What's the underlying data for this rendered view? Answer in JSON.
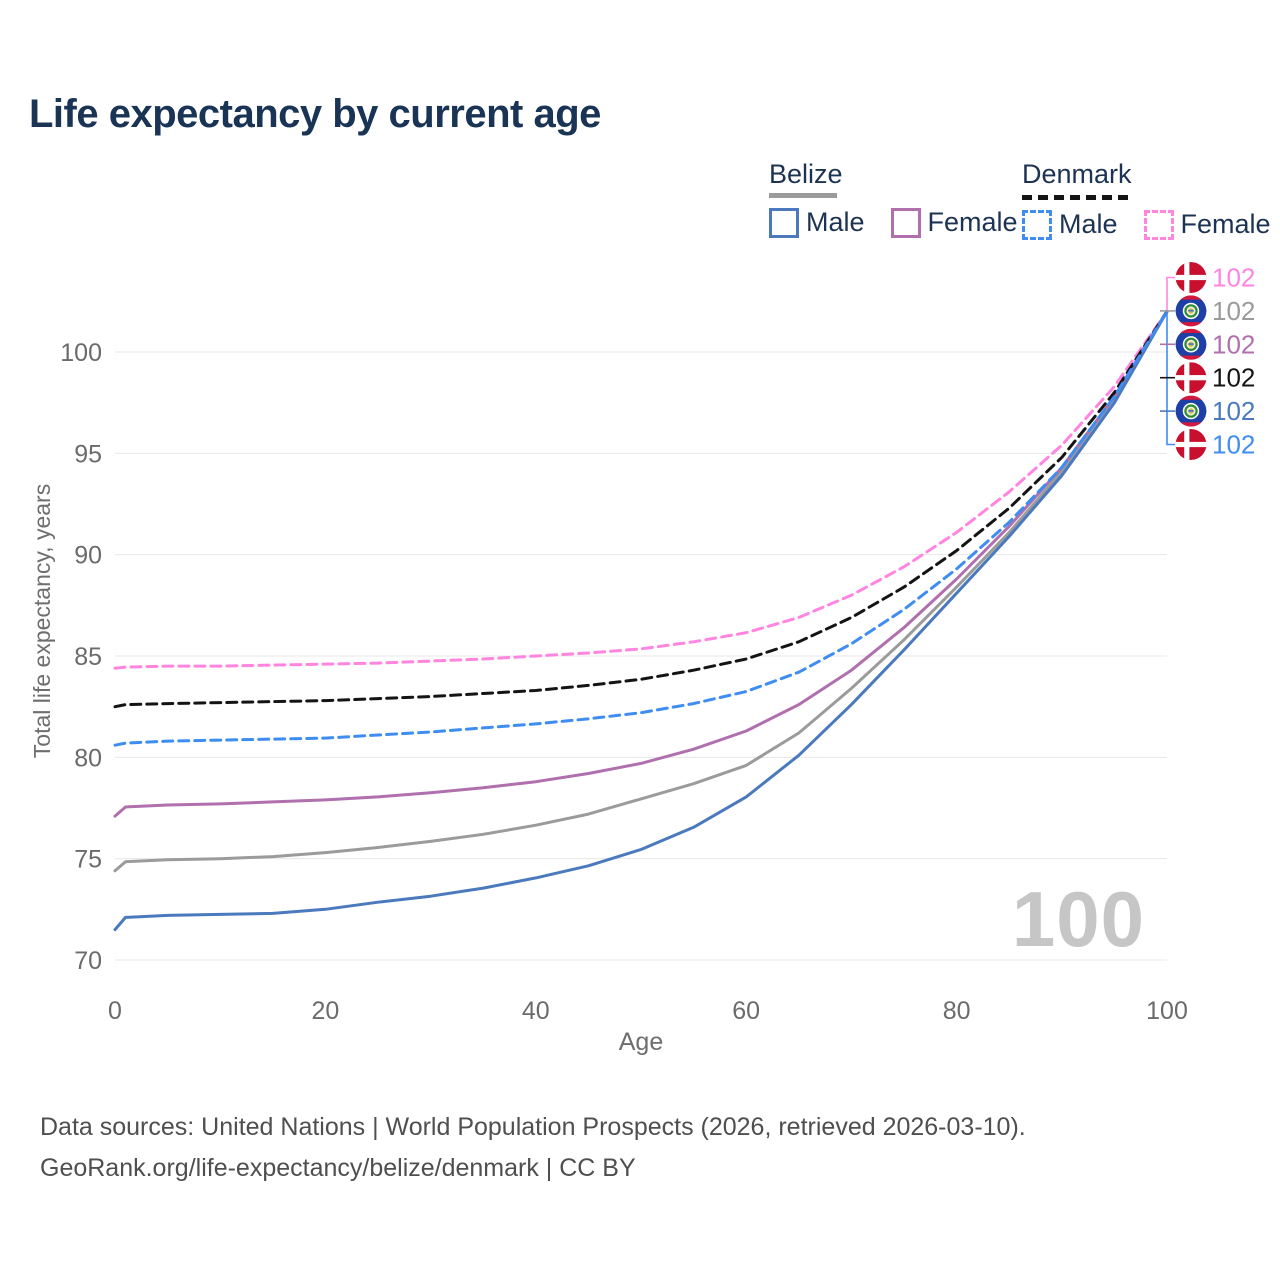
{
  "header": {
    "title": "Life expectancy by current age"
  },
  "legend": {
    "belize": {
      "label": "Belize",
      "male": "Male",
      "female": "Female",
      "line_color": "#9b9b9b",
      "male_color": "#4a7abd",
      "female_color": "#b06fad",
      "style": "solid"
    },
    "denmark": {
      "label": "Denmark",
      "male": "Male",
      "female": "Female",
      "line_color": "#141414",
      "male_color": "#3f8df2",
      "female_color": "#ff85e1",
      "style": "dashed"
    }
  },
  "footer": {
    "line1": "Data sources: United Nations | World Population Prospects (2026, retrieved 2026-03-10).",
    "line2": "GeoRank.org/life-expectancy/belize/denmark | CC BY"
  },
  "chart_data": {
    "type": "line",
    "title": "Life expectancy by current age",
    "xlabel": "Age",
    "ylabel": "Total life expectancy, years",
    "age_indicator": "100",
    "xlim": [
      0,
      100
    ],
    "ylim": [
      69.5,
      103
    ],
    "x_ticks": [
      0,
      20,
      40,
      60,
      80,
      100
    ],
    "y_ticks": [
      70,
      75,
      80,
      85,
      90,
      95,
      100
    ],
    "grid": "horizontal-only",
    "legend_position": "top-right",
    "ages": [
      0,
      1,
      5,
      10,
      15,
      20,
      25,
      30,
      35,
      40,
      45,
      50,
      55,
      60,
      65,
      70,
      75,
      80,
      85,
      90,
      95,
      100
    ],
    "series": [
      {
        "id": "denmark-female",
        "name": "Denmark Female",
        "country": "Denmark",
        "sex": "Female",
        "style": "dashed",
        "color": "#ff85e1",
        "flag": "denmark",
        "end_label": "102",
        "values": [
          84.4,
          84.45,
          84.5,
          84.5,
          84.55,
          84.6,
          84.65,
          84.75,
          84.85,
          85.0,
          85.15,
          85.35,
          85.7,
          86.15,
          86.9,
          88.0,
          89.4,
          91.1,
          93.1,
          95.4,
          98.3,
          102
        ]
      },
      {
        "id": "belize-all",
        "name": "Belize",
        "country": "Belize",
        "sex": "Both",
        "style": "solid",
        "color": "#9b9b9b",
        "flag": "belize",
        "end_label": "102",
        "values": [
          74.4,
          74.85,
          74.95,
          75.0,
          75.1,
          75.3,
          75.55,
          75.85,
          76.2,
          76.65,
          77.2,
          77.95,
          78.7,
          79.6,
          81.2,
          83.4,
          85.8,
          88.4,
          91.1,
          94.1,
          97.7,
          102
        ]
      },
      {
        "id": "belize-female",
        "name": "Belize Female",
        "country": "Belize",
        "sex": "Female",
        "style": "solid",
        "color": "#b06fad",
        "flag": "belize",
        "end_label": "102",
        "values": [
          77.1,
          77.55,
          77.65,
          77.7,
          77.8,
          77.9,
          78.05,
          78.25,
          78.5,
          78.8,
          79.2,
          79.7,
          80.4,
          81.3,
          82.6,
          84.3,
          86.4,
          88.8,
          91.4,
          94.3,
          97.8,
          102
        ]
      },
      {
        "id": "denmark-all",
        "name": "Denmark",
        "country": "Denmark",
        "sex": "Both",
        "style": "dashed",
        "color": "#141414",
        "flag": "denmark",
        "end_label": "102",
        "values": [
          82.5,
          82.6,
          82.65,
          82.7,
          82.75,
          82.8,
          82.9,
          83.0,
          83.15,
          83.3,
          83.55,
          83.85,
          84.3,
          84.85,
          85.7,
          86.9,
          88.4,
          90.2,
          92.3,
          94.8,
          98.0,
          102
        ]
      },
      {
        "id": "belize-male",
        "name": "Belize Male",
        "country": "Belize",
        "sex": "Male",
        "style": "solid",
        "color": "#4a7abd",
        "flag": "belize",
        "end_label": "102",
        "values": [
          71.5,
          72.1,
          72.2,
          72.25,
          72.3,
          72.5,
          72.85,
          73.15,
          73.55,
          74.05,
          74.65,
          75.45,
          76.55,
          78.05,
          80.1,
          82.6,
          85.3,
          88.1,
          90.9,
          93.9,
          97.5,
          102
        ]
      },
      {
        "id": "denmark-male",
        "name": "Denmark Male",
        "country": "Denmark",
        "sex": "Male",
        "style": "dashed",
        "color": "#3f8df2",
        "flag": "denmark",
        "end_label": "102",
        "values": [
          80.6,
          80.7,
          80.8,
          80.85,
          80.9,
          80.95,
          81.1,
          81.25,
          81.45,
          81.65,
          81.9,
          82.2,
          82.65,
          83.25,
          84.2,
          85.6,
          87.3,
          89.3,
          91.6,
          94.3,
          97.8,
          102
        ]
      }
    ]
  }
}
